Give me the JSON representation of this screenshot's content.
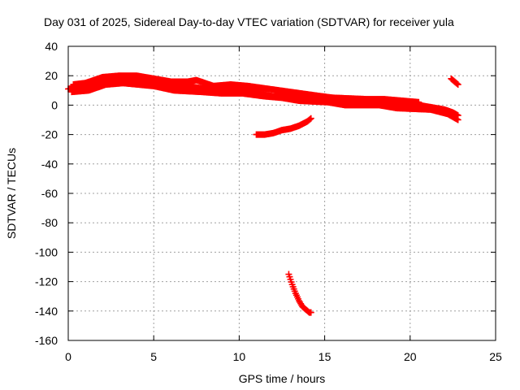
{
  "chart_data": {
    "type": "scatter",
    "title": "Day 031 of 2025, Sidereal Day-to-day VTEC variation (SDTVAR) for receiver yula",
    "xlabel": "GPS time / hours",
    "ylabel": "SDTVAR / TECUs",
    "xlim": [
      0,
      25
    ],
    "ylim": [
      -160,
      40
    ],
    "xticks": [
      0,
      5,
      10,
      15,
      20,
      25
    ],
    "yticks": [
      -160,
      -140,
      -120,
      -100,
      -80,
      -60,
      -40,
      -20,
      0,
      20,
      40
    ],
    "xtick_labels": [
      "0",
      "5",
      "10",
      "15",
      "20",
      "25"
    ],
    "ytick_labels": [
      "-160",
      "-140",
      "-120",
      "-100",
      "-80",
      "-60",
      "-40",
      "-20",
      "0",
      "20",
      "40"
    ],
    "grid": true,
    "marker": "plus",
    "series_color": "#ff0000",
    "series": [
      {
        "name": "main-track",
        "x": [
          0.0,
          0.5,
          1.0,
          1.5,
          2.0,
          2.5,
          3.0,
          3.5,
          4.0,
          4.5,
          5.0,
          5.5,
          6.0,
          6.5,
          7.0,
          7.5,
          8.0,
          8.5,
          9.0,
          9.5,
          10.0,
          10.5,
          11.0,
          11.5,
          12.0,
          12.5,
          13.0,
          13.5,
          14.0,
          14.5,
          15.0,
          15.5,
          16.0,
          16.5,
          17.0,
          17.5,
          18.0,
          18.5,
          19.0,
          19.5,
          20.0,
          20.5,
          21.0,
          21.5,
          22.0,
          22.5,
          22.8
        ],
        "y": [
          11,
          12,
          13,
          15,
          17,
          18,
          18,
          18,
          17,
          16,
          15,
          14,
          13,
          13,
          13,
          12,
          11,
          10,
          10,
          10,
          10,
          9,
          8,
          7,
          6,
          6,
          5,
          5,
          4,
          4,
          4,
          3,
          2,
          2,
          2,
          2,
          2,
          1,
          1,
          1,
          1,
          0,
          -1,
          -2,
          -3,
          -5,
          -7
        ]
      },
      {
        "name": "upper-band",
        "x": [
          0.3,
          1.0,
          2.0,
          3.0,
          4.0,
          6.0,
          7.0,
          7.5,
          8.5,
          9.5,
          10.5,
          14.8,
          15.5,
          17.5,
          18.5,
          19.5,
          20.5
        ],
        "y": [
          14,
          15,
          19,
          20,
          20,
          16,
          16,
          17,
          13,
          14,
          13,
          6,
          5,
          4,
          4,
          3,
          2
        ]
      },
      {
        "name": "lower-band",
        "x": [
          0.2,
          1.2,
          2.2,
          3.2,
          5.0,
          6.2,
          7.8,
          9.0,
          10.2,
          11.5,
          12.5,
          13.5,
          15.2,
          16.2,
          18.2,
          19.2,
          21.2,
          22.2,
          22.8
        ],
        "y": [
          9,
          10,
          14,
          15,
          13,
          10,
          9,
          8,
          8,
          6,
          5,
          3,
          2,
          0,
          0,
          -2,
          -3,
          -6,
          -10
        ]
      },
      {
        "name": "mid-negative-arc",
        "x": [
          11.0,
          11.5,
          12.0,
          12.5,
          13.0,
          13.5,
          14.0,
          14.2
        ],
        "y": [
          -20,
          -20,
          -19,
          -17,
          -16,
          -14,
          -11,
          -9
        ]
      },
      {
        "name": "deep-negative-arc",
        "x": [
          12.9,
          13.1,
          13.3,
          13.5,
          13.7,
          13.9,
          14.1,
          14.2
        ],
        "y": [
          -115,
          -122,
          -128,
          -133,
          -137,
          -139,
          -141,
          -141
        ]
      },
      {
        "name": "late-short-segment",
        "x": [
          22.4,
          22.6,
          22.8
        ],
        "y": [
          18,
          16,
          14
        ]
      }
    ]
  }
}
